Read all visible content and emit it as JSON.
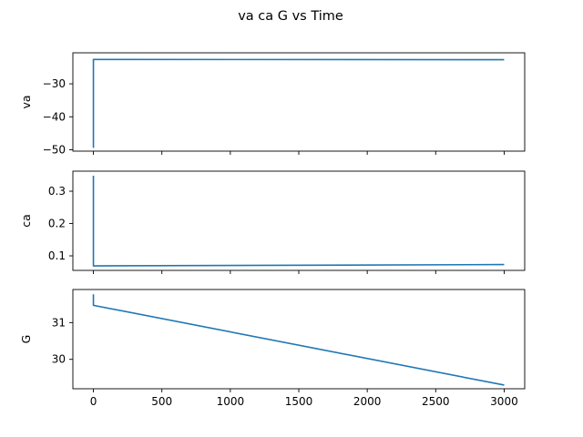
{
  "figure_title": "va ca G vs Time",
  "chart_data": [
    {
      "type": "line",
      "title": "",
      "xlabel": "",
      "ylabel": "va",
      "xlim": [
        -150,
        3150
      ],
      "ylim": [
        -50.4,
        -20.6
      ],
      "xticks": [
        0,
        500,
        1000,
        1500,
        2000,
        2500,
        3000
      ],
      "xtick_labels": [],
      "yticks": [
        -30,
        -40,
        -50
      ],
      "ytick_labels": [
        "−30",
        "−40",
        "−50"
      ],
      "grid": false,
      "series": [
        {
          "color": "#1f77b4",
          "x": [
            0,
            0,
            3000
          ],
          "y": [
            -49.4,
            -22.6,
            -22.7
          ]
        }
      ]
    },
    {
      "type": "line",
      "title": "",
      "xlabel": "",
      "ylabel": "ca",
      "xlim": [
        -150,
        3150
      ],
      "ylim": [
        0.055,
        0.362
      ],
      "xticks": [
        0,
        500,
        1000,
        1500,
        2000,
        2500,
        3000
      ],
      "xtick_labels": [],
      "yticks": [
        0.1,
        0.2,
        0.3
      ],
      "ytick_labels": [
        "0.1",
        "0.2",
        "0.3"
      ],
      "grid": false,
      "series": [
        {
          "color": "#1f77b4",
          "x": [
            0,
            0,
            3000
          ],
          "y": [
            0.348,
            0.069,
            0.073
          ]
        }
      ]
    },
    {
      "type": "line",
      "title": "",
      "xlabel": "",
      "ylabel": "G",
      "xlim": [
        -150,
        3150
      ],
      "ylim": [
        29.2,
        31.9
      ],
      "xticks": [
        0,
        500,
        1000,
        1500,
        2000,
        2500,
        3000
      ],
      "xtick_labels": [
        "0",
        "500",
        "1000",
        "1500",
        "2000",
        "2500",
        "3000"
      ],
      "yticks": [
        31,
        30
      ],
      "ytick_labels": [
        "31",
        "30"
      ],
      "grid": false,
      "series": [
        {
          "color": "#1f77b4",
          "x": [
            0,
            0,
            3000
          ],
          "y": [
            31.77,
            31.47,
            29.3
          ]
        }
      ]
    }
  ]
}
